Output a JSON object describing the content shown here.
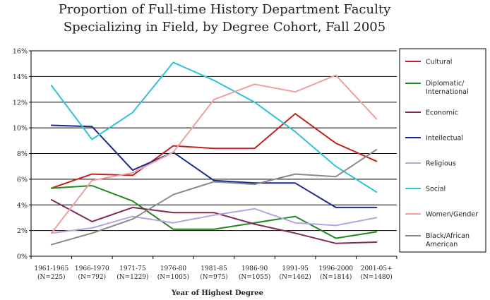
{
  "chart_data": {
    "type": "line",
    "title_lines": [
      "Proportion of Full-time History Department Faculty",
      "Specializing in Field, by Degree Cohort, Fall 2005"
    ],
    "xlabel": "Year of Highest Degree",
    "ylabel": "",
    "ylim": [
      0,
      16
    ],
    "y_ticks": [
      {
        "value": 0,
        "label": "0%"
      },
      {
        "value": 2,
        "label": "2%"
      },
      {
        "value": 4,
        "label": "4%"
      },
      {
        "value": 6,
        "label": "6%"
      },
      {
        "value": 8,
        "label": "8%"
      },
      {
        "value": 10,
        "label": "10%"
      },
      {
        "value": 12,
        "label": "12%"
      },
      {
        "value": 14,
        "label": "14%"
      },
      {
        "value": 16,
        "label": "16%"
      }
    ],
    "categories": [
      {
        "line1": "1961-1965",
        "line2": "(N=225)"
      },
      {
        "line1": "1966-1970",
        "line2": "(N=792)"
      },
      {
        "line1": "1971-75",
        "line2": "(N=1229)"
      },
      {
        "line1": "1976-80",
        "line2": "(N=1005)"
      },
      {
        "line1": "1981-85",
        "line2": "(N=975)"
      },
      {
        "line1": "1986-90",
        "line2": "(N=1055)"
      },
      {
        "line1": "1991-95",
        "line2": "(N=1462)"
      },
      {
        "line1": "1996-2000",
        "line2": "(N=1814)"
      },
      {
        "line1": "2001-05+",
        "line2": "(N=1480)"
      }
    ],
    "grid": "horizontal",
    "legend_position": "right",
    "series": [
      {
        "name_lines": [
          "Cultural"
        ],
        "color": "#c0221f",
        "values": [
          5.3,
          6.4,
          6.3,
          8.6,
          8.4,
          8.4,
          11.1,
          8.8,
          7.4
        ]
      },
      {
        "name_lines": [
          "Diplomatic/",
          "International"
        ],
        "color": "#1d8a1d",
        "values": [
          5.3,
          5.5,
          4.3,
          2.1,
          2.1,
          2.6,
          3.1,
          1.4,
          1.9
        ]
      },
      {
        "name_lines": [
          "Economic"
        ],
        "color": "#7d2a56",
        "values": [
          4.4,
          2.7,
          3.8,
          3.4,
          3.4,
          2.5,
          1.8,
          1.0,
          1.1
        ]
      },
      {
        "name_lines": [
          "Intellectual"
        ],
        "color": "#1a2a8f",
        "values": [
          10.2,
          10.1,
          6.7,
          8.1,
          5.9,
          5.7,
          5.7,
          3.8,
          3.8
        ]
      },
      {
        "name_lines": [
          "Religious"
        ],
        "color": "#b9a3e6",
        "values": [
          1.8,
          2.2,
          3.1,
          2.6,
          3.2,
          3.7,
          2.6,
          2.4,
          3.0
        ]
      },
      {
        "name_lines": [
          "Social"
        ],
        "color": "#2ec2d6",
        "values": [
          13.3,
          9.1,
          11.2,
          15.1,
          13.7,
          12.0,
          9.7,
          7.0,
          5.0
        ]
      },
      {
        "name_lines": [
          "Women/Gender"
        ],
        "color": "#f0a09c",
        "values": [
          1.8,
          5.9,
          6.5,
          8.1,
          12.2,
          13.4,
          12.8,
          14.1,
          10.7
        ]
      },
      {
        "name_lines": [
          "Black/African",
          "American"
        ],
        "color": "#8a8a8a",
        "values": [
          0.9,
          1.8,
          2.9,
          4.8,
          5.8,
          5.6,
          6.4,
          6.2,
          8.3
        ]
      }
    ]
  }
}
